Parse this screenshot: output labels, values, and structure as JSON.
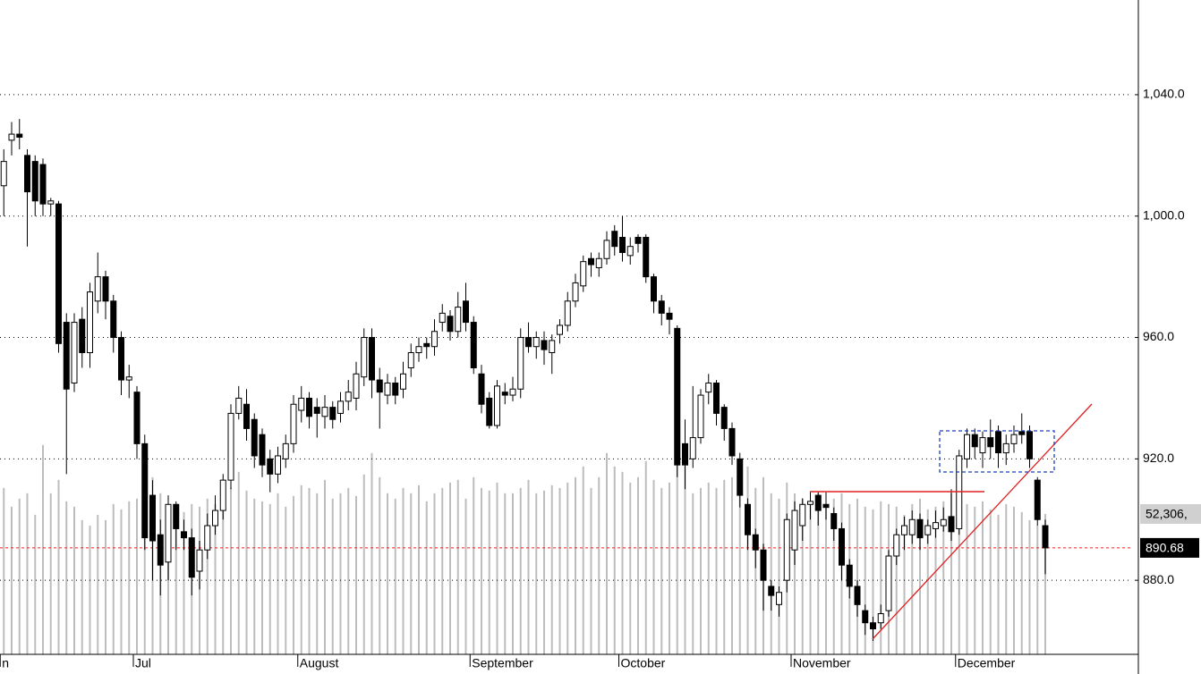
{
  "chart_data": {
    "type": "candlestick",
    "categories": [
      "n",
      null,
      null,
      null,
      null,
      null,
      null,
      null,
      null,
      null,
      null,
      null,
      null,
      null,
      null,
      null,
      null,
      "Jul",
      null,
      null,
      null,
      null,
      null,
      null,
      null,
      null,
      null,
      null,
      null,
      null,
      null,
      null,
      null,
      null,
      null,
      null,
      null,
      null,
      "August",
      null,
      null,
      null,
      null,
      null,
      null,
      null,
      null,
      null,
      null,
      null,
      null,
      null,
      null,
      null,
      null,
      null,
      null,
      null,
      null,
      null,
      "September",
      null,
      null,
      null,
      null,
      null,
      null,
      null,
      null,
      null,
      null,
      null,
      null,
      null,
      null,
      null,
      null,
      null,
      null,
      "October",
      null,
      null,
      null,
      null,
      null,
      null,
      null,
      null,
      null,
      null,
      null,
      null,
      null,
      null,
      null,
      null,
      null,
      null,
      null,
      null,
      null,
      "November",
      null,
      null,
      null,
      null,
      null,
      null,
      null,
      null,
      null,
      null,
      null,
      null,
      null,
      null,
      null,
      null,
      null,
      null,
      null,
      null,
      "December",
      null,
      null,
      null,
      null,
      null,
      null,
      null,
      null,
      null,
      null,
      null
    ],
    "open": [
      1010,
      1025,
      1027,
      1020,
      1018,
      1017,
      1004,
      1004,
      965,
      945,
      966,
      955,
      972,
      980,
      972,
      960,
      946,
      942,
      925,
      908,
      895,
      886,
      905,
      896,
      894,
      883,
      890,
      898,
      903,
      913,
      935,
      938,
      933,
      928,
      920,
      915,
      920,
      925,
      936,
      940,
      937,
      934,
      937,
      935,
      939,
      940,
      947,
      960,
      946,
      941,
      945,
      943,
      950,
      955,
      958,
      957,
      965,
      967,
      962,
      972,
      965,
      948,
      940,
      931,
      942,
      941,
      943,
      960,
      957,
      959,
      955,
      961,
      964,
      972,
      977,
      986,
      983,
      986,
      995,
      993,
      987,
      993,
      993,
      980,
      972,
      968,
      963,
      925,
      920,
      927,
      942,
      945,
      937,
      930,
      920,
      905,
      895,
      890,
      878,
      872,
      880,
      890,
      898,
      905,
      908,
      905,
      902,
      897,
      885,
      878,
      870,
      866,
      866,
      870,
      888,
      895,
      895,
      900,
      895,
      897,
      898,
      901,
      897,
      920,
      928,
      922,
      927,
      929,
      922,
      925,
      929,
      929,
      913,
      898
    ],
    "high": [
      1022,
      1031,
      1032,
      1022,
      1020,
      1019,
      1006,
      1005,
      968,
      968,
      970,
      978,
      988,
      982,
      974,
      962,
      951,
      944,
      928,
      913,
      900,
      908,
      906,
      900,
      897,
      893,
      902,
      908,
      915,
      938,
      944,
      943,
      935,
      930,
      923,
      924,
      928,
      941,
      944,
      942,
      940,
      941,
      939,
      942,
      946,
      952,
      963,
      963,
      950,
      948,
      947,
      952,
      958,
      960,
      960,
      966,
      971,
      969,
      975,
      978,
      967,
      951,
      942,
      946,
      945,
      947,
      963,
      965,
      962,
      962,
      961,
      966,
      975,
      981,
      987,
      988,
      988,
      995,
      997,
      1000,
      993,
      994,
      994,
      981,
      974,
      970,
      964,
      933,
      944,
      943,
      948,
      946,
      938,
      932,
      922,
      907,
      897,
      892,
      880,
      878,
      902,
      906,
      907,
      909,
      909,
      909,
      904,
      899,
      887,
      880,
      872,
      868,
      872,
      890,
      897,
      901,
      903,
      902,
      900,
      903,
      904,
      910,
      923,
      930,
      930,
      929,
      933,
      931,
      928,
      931,
      935,
      931,
      914,
      900
    ],
    "low": [
      1000,
      1020,
      1022,
      990,
      1000,
      1000,
      1000,
      955,
      915,
      942,
      950,
      950,
      968,
      966,
      955,
      941,
      940,
      920,
      890,
      880,
      875,
      880,
      890,
      890,
      875,
      877,
      887,
      895,
      900,
      910,
      933,
      926,
      917,
      914,
      909,
      912,
      917,
      922,
      932,
      930,
      927,
      930,
      930,
      932,
      936,
      936,
      944,
      940,
      930,
      938,
      938,
      940,
      947,
      952,
      953,
      954,
      962,
      959,
      960,
      962,
      948,
      935,
      930,
      930,
      938,
      939,
      940,
      955,
      953,
      951,
      948,
      958,
      962,
      970,
      975,
      980,
      980,
      984,
      987,
      985,
      984,
      988,
      978,
      968,
      964,
      961,
      914,
      910,
      917,
      925,
      938,
      931,
      926,
      918,
      904,
      890,
      884,
      870,
      870,
      868,
      876,
      885,
      893,
      900,
      898,
      900,
      893,
      880,
      874,
      868,
      862,
      860,
      864,
      868,
      885,
      890,
      892,
      890,
      892,
      894,
      896,
      893,
      895,
      917,
      920,
      917,
      920,
      917,
      918,
      922,
      925,
      917,
      898,
      882
    ],
    "close": [
      1018,
      1027,
      1026,
      1008,
      1005,
      1004,
      1005,
      958,
      943,
      965,
      955,
      975,
      980,
      972,
      960,
      946,
      947,
      925,
      894,
      893,
      885,
      905,
      897,
      894,
      881,
      890,
      898,
      903,
      913,
      935,
      940,
      930,
      921,
      918,
      915,
      921,
      925,
      938,
      940,
      934,
      935,
      937,
      933,
      939,
      942,
      948,
      960,
      946,
      942,
      945,
      941,
      948,
      955,
      957,
      957,
      962,
      968,
      962,
      970,
      965,
      950,
      938,
      931,
      944,
      941,
      943,
      960,
      957,
      960,
      956,
      959,
      964,
      972,
      978,
      985,
      984,
      986,
      992,
      990,
      988,
      990,
      991,
      980,
      972,
      968,
      966,
      918,
      918,
      927,
      941,
      945,
      935,
      930,
      921,
      908,
      895,
      890,
      880,
      875,
      876,
      900,
      903,
      905,
      906,
      903,
      904,
      897,
      885,
      878,
      872,
      866,
      864,
      869,
      888,
      895,
      898,
      900,
      894,
      898,
      899,
      900,
      896,
      921,
      928,
      924,
      927,
      924,
      922,
      925,
      928,
      928,
      920,
      900,
      890.68
    ],
    "volume": [
      62000,
      55000,
      58000,
      60000,
      52000,
      78000,
      60000,
      65000,
      57000,
      55000,
      50000,
      48000,
      52000,
      50000,
      56000,
      54000,
      57000,
      58000,
      62000,
      66000,
      60000,
      55000,
      54000,
      53000,
      56000,
      55000,
      58000,
      56000,
      60000,
      62000,
      68000,
      61000,
      58000,
      57000,
      56000,
      60000,
      55000,
      59000,
      63000,
      62000,
      60000,
      65000,
      58000,
      60000,
      62000,
      59000,
      67000,
      75000,
      66000,
      60000,
      58000,
      62000,
      60000,
      63000,
      57000,
      60000,
      62000,
      64000,
      65000,
      58000,
      66000,
      62000,
      61000,
      64000,
      60000,
      60000,
      62000,
      65000,
      60000,
      61000,
      63000,
      62000,
      64000,
      66000,
      70000,
      62000,
      66000,
      75000,
      70000,
      68000,
      64000,
      66000,
      72000,
      65000,
      62000,
      64000,
      80000,
      70000,
      60000,
      62000,
      64000,
      62000,
      65000,
      66000,
      68000,
      70000,
      62000,
      66000,
      60000,
      58000,
      64000,
      60000,
      58000,
      56000,
      60000,
      55000,
      58000,
      60000,
      56000,
      58000,
      55000,
      54000,
      57000,
      56000,
      55000,
      52000,
      56000,
      58000,
      54000,
      55000,
      57000,
      60000,
      58000,
      56000,
      55000,
      57000,
      54000,
      52000,
      56000,
      55000,
      53000,
      50000,
      48000,
      52306
    ],
    "volume_label": "52,306,",
    "last_price_label": "890.68",
    "ylim": [
      855.6,
      1071.2
    ],
    "yticks": [
      {
        "value": 880,
        "label": "880.0"
      },
      {
        "value": 920,
        "label": "920.0"
      },
      {
        "value": 960,
        "label": "960.0"
      },
      {
        "value": 1000,
        "label": "1,000.0"
      },
      {
        "value": 1040,
        "label": "1,040.0"
      }
    ],
    "vlim": [
      0,
      243800
    ],
    "grid": true,
    "up_color": "#ffffff",
    "down_color": "#000000",
    "volume_color": "#bdbdbd",
    "last_price_line_color": "#e02020"
  }
}
